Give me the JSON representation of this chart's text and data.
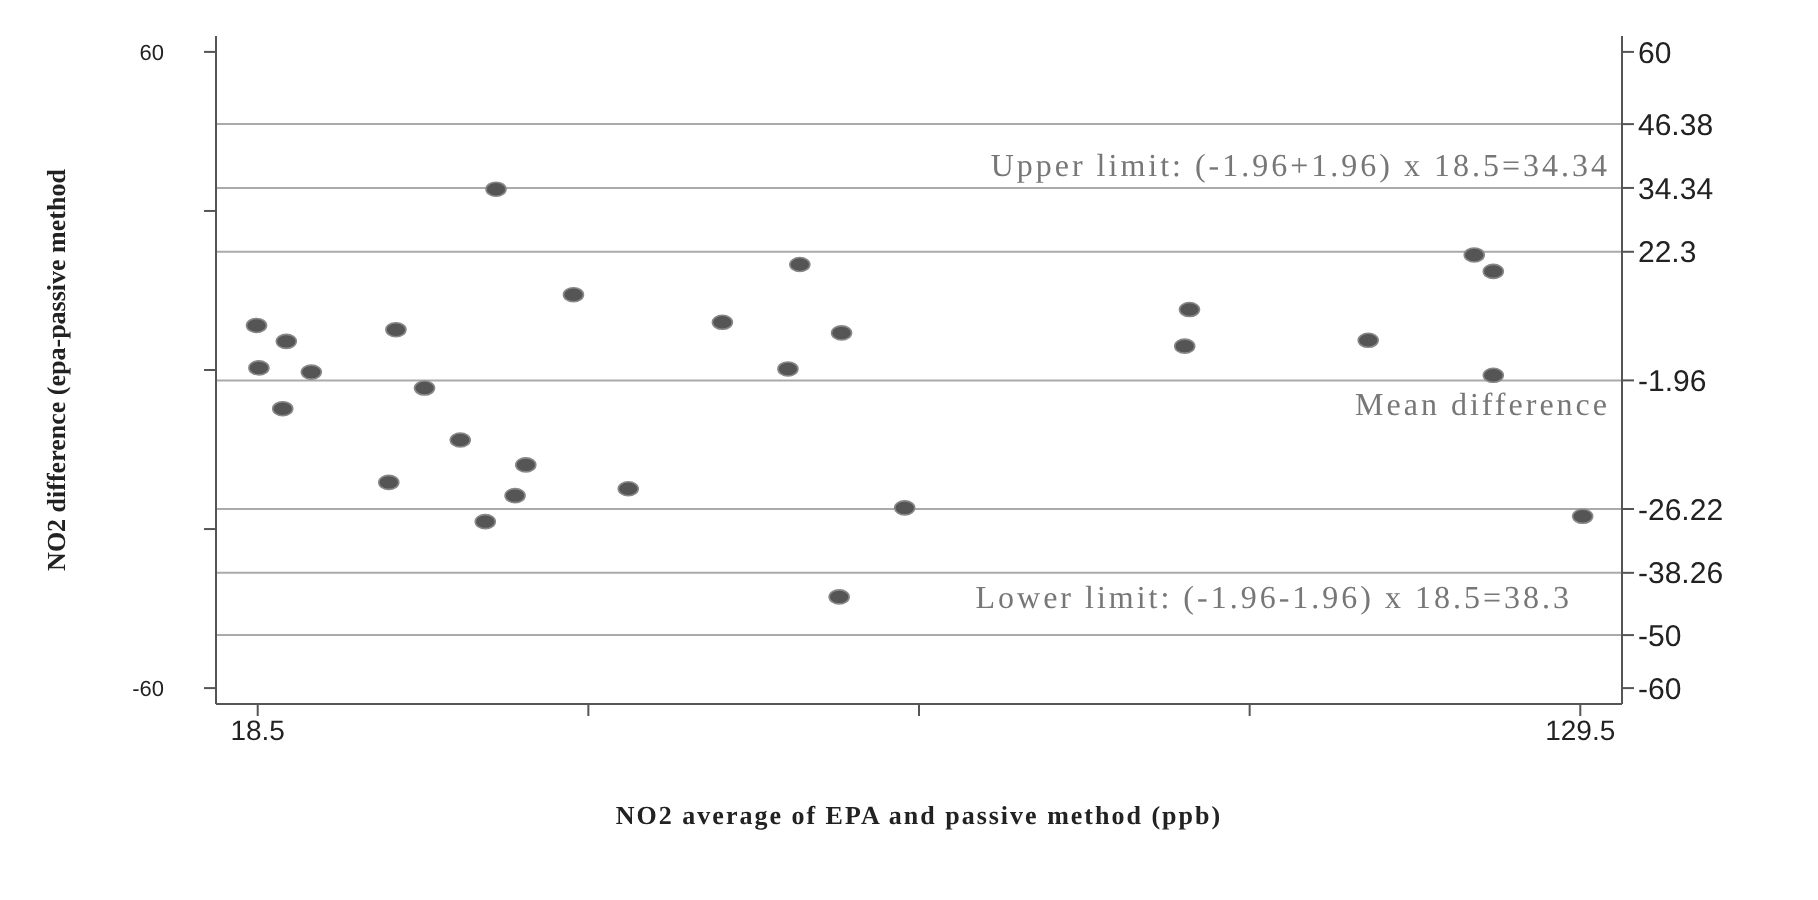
{
  "chart_data": {
    "type": "scatter",
    "xlabel": "NO2 average of EPA and passive method (ppb)",
    "ylabel": "NO2 difference (epa-passive method",
    "x": [
      18.4,
      20.9,
      18.6,
      23.0,
      20.6,
      30.1,
      32.5,
      35.5,
      29.5,
      41.0,
      40.1,
      37.6,
      38.5,
      45.0,
      49.6,
      57.5,
      64.0,
      63.0,
      67.5,
      72.8,
      67.3,
      96.7,
      96.3,
      111.7,
      120.6,
      122.2,
      122.2,
      129.7
    ],
    "series": [
      {
        "color": "#555555",
        "values": [
          8.4,
          5.4,
          0.4,
          -0.4,
          -7.3,
          7.6,
          -3.4,
          -13.2,
          -21.2,
          -17.9,
          -23.7,
          -28.6,
          34.1,
          14.2,
          -22.4,
          9.0,
          19.9,
          0.2,
          7.0,
          -26.0,
          -42.8,
          11.4,
          4.5,
          5.6,
          21.7,
          18.6,
          -1.0,
          -27.6
        ]
      }
    ],
    "xlim": [
      15,
      133
    ],
    "xticks": [
      18.5,
      {
        "value": 46.25,
        "label": null
      },
      {
        "value": 74,
        "label": null
      },
      {
        "value": 101.75,
        "label": null
      },
      129.5
    ],
    "annotations": [
      "Lower limit: (-1.96-1.96) x 18.5=38.3"
    ],
    "ylim": [
      -63,
      63
    ],
    "yticks": [
      60,
      {
        "value": 30,
        "label": null
      },
      {
        "value": 0,
        "label": null
      },
      {
        "value": -30,
        "label": null
      },
      -60
    ],
    "y2lim": [
      -63,
      63
    ],
    "y2ticks": [
      60,
      46.38,
      34.34,
      22.3,
      -1.96,
      -26.22,
      -38.26,
      -50,
      -60
    ],
    "ref_lines": [
      {
        "axis": "y",
        "value": 46.38,
        "color": "#aaaaaa"
      },
      {
        "axis": "y",
        "value": 34.34,
        "color": "#aaaaaa",
        "label": "Upper limit: (-1.96+1.96) x 18.5=34.34"
      },
      {
        "axis": "y",
        "value": 22.3,
        "color": "#aaaaaa"
      },
      {
        "axis": "y",
        "value": -1.96,
        "color": "#aaaaaa",
        "label": "Mean difference"
      },
      {
        "axis": "y",
        "value": -26.22,
        "color": "#aaaaaa"
      },
      {
        "axis": "y",
        "value": -38.26,
        "color": "#aaaaaa"
      },
      {
        "axis": "y",
        "value": -50,
        "color": "#aaaaaa"
      }
    ],
    "marker": "circle",
    "grid": false,
    "legend": false
  }
}
